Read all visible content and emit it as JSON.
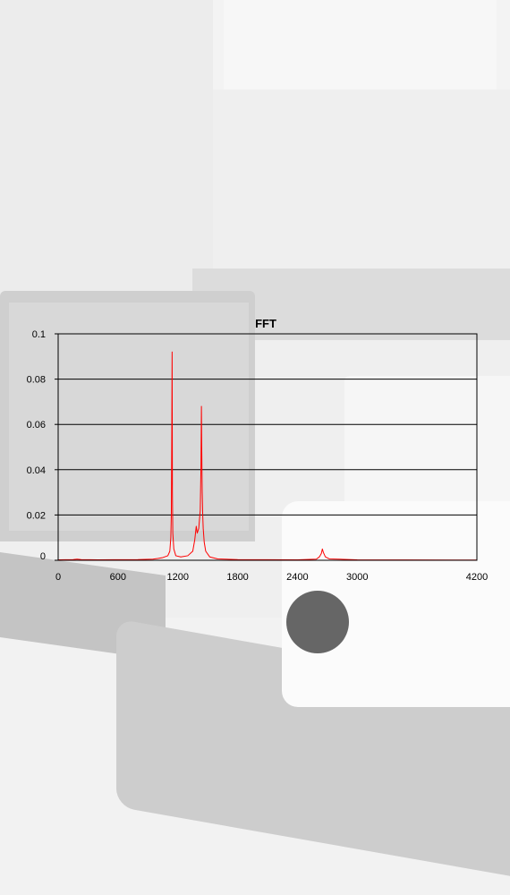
{
  "chart_data": {
    "type": "line",
    "title": "FFT",
    "xlabel": "",
    "ylabel": "",
    "xlim": [
      0,
      4200
    ],
    "ylim": [
      0,
      0.1
    ],
    "x_ticks": [
      "0",
      "600",
      "1200",
      "1800",
      "2400",
      "3000",
      "4200"
    ],
    "x_tick_values": [
      0,
      600,
      1200,
      1800,
      2400,
      3000,
      4200
    ],
    "y_ticks": [
      "0",
      "0.02",
      "0.04",
      "0.06",
      "0.08",
      "0.1"
    ],
    "y_tick_values": [
      0,
      0.02,
      0.04,
      0.06,
      0.08,
      0.1
    ],
    "grid": "horizontal",
    "series": [
      {
        "color": "#ff0000",
        "points": [
          [
            0,
            0.0002
          ],
          [
            150,
            0.0003
          ],
          [
            190,
            0.0005
          ],
          [
            230,
            0.0003
          ],
          [
            400,
            0.0002
          ],
          [
            800,
            0.0003
          ],
          [
            950,
            0.0005
          ],
          [
            1000,
            0.0008
          ],
          [
            1050,
            0.0012
          ],
          [
            1100,
            0.002
          ],
          [
            1120,
            0.004
          ],
          [
            1130,
            0.01
          ],
          [
            1135,
            0.02
          ],
          [
            1140,
            0.058
          ],
          [
            1143,
            0.092
          ],
          [
            1146,
            0.03
          ],
          [
            1150,
            0.012
          ],
          [
            1160,
            0.005
          ],
          [
            1180,
            0.002
          ],
          [
            1230,
            0.0015
          ],
          [
            1300,
            0.002
          ],
          [
            1350,
            0.004
          ],
          [
            1370,
            0.009
          ],
          [
            1385,
            0.015
          ],
          [
            1395,
            0.012
          ],
          [
            1410,
            0.014
          ],
          [
            1425,
            0.022
          ],
          [
            1432,
            0.04
          ],
          [
            1437,
            0.068
          ],
          [
            1440,
            0.05
          ],
          [
            1445,
            0.03
          ],
          [
            1450,
            0.02
          ],
          [
            1455,
            0.014
          ],
          [
            1465,
            0.008
          ],
          [
            1480,
            0.004
          ],
          [
            1520,
            0.0015
          ],
          [
            1600,
            0.0006
          ],
          [
            1800,
            0.0003
          ],
          [
            2400,
            0.0002
          ],
          [
            2590,
            0.0005
          ],
          [
            2620,
            0.0015
          ],
          [
            2640,
            0.003
          ],
          [
            2650,
            0.005
          ],
          [
            2660,
            0.0035
          ],
          [
            2680,
            0.0015
          ],
          [
            2720,
            0.0006
          ],
          [
            3000,
            0.0002
          ],
          [
            4200,
            0.0001
          ]
        ]
      }
    ]
  }
}
